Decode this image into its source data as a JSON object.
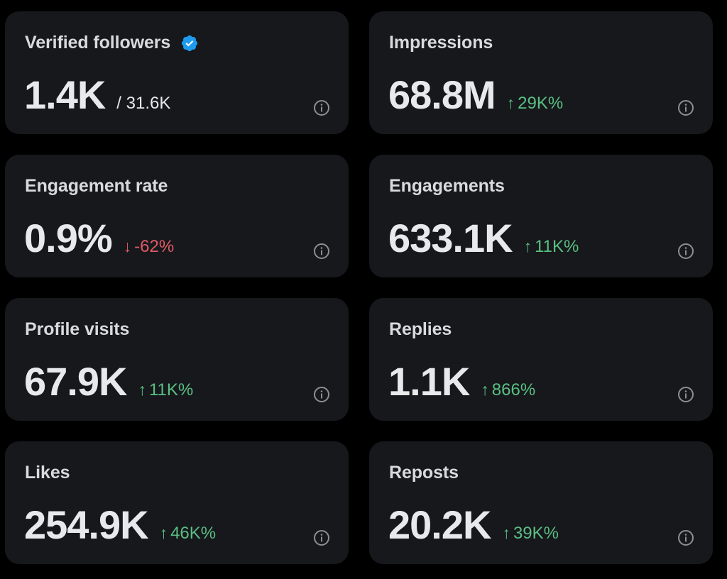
{
  "colors": {
    "background": "#000000",
    "card": "#16181c",
    "text": "#e7e9ea",
    "label": "#d9dadb",
    "up": "#5bbf82",
    "down": "#e05a65",
    "verified": "#1d9bf0",
    "info_icon": "#8b8f94"
  },
  "cards": [
    {
      "label": "Verified followers",
      "value": "1.4K",
      "total": "/ 31.6K",
      "icon": "verified-badge-icon"
    },
    {
      "label": "Impressions",
      "value": "68.8M",
      "delta_arrow": "↑",
      "delta": "29K%",
      "trend": "up"
    },
    {
      "label": "Engagement rate",
      "value": "0.9%",
      "delta_arrow": "↓",
      "delta": "-62%",
      "trend": "down"
    },
    {
      "label": "Engagements",
      "value": "633.1K",
      "delta_arrow": "↑",
      "delta": "11K%",
      "trend": "up"
    },
    {
      "label": "Profile visits",
      "value": "67.9K",
      "delta_arrow": "↑",
      "delta": "11K%",
      "trend": "up"
    },
    {
      "label": "Replies",
      "value": "1.1K",
      "delta_arrow": "↑",
      "delta": "866%",
      "trend": "up"
    },
    {
      "label": "Likes",
      "value": "254.9K",
      "delta_arrow": "↑",
      "delta": "46K%",
      "trend": "up"
    },
    {
      "label": "Reposts",
      "value": "20.2K",
      "delta_arrow": "↑",
      "delta": "39K%",
      "trend": "up"
    }
  ]
}
